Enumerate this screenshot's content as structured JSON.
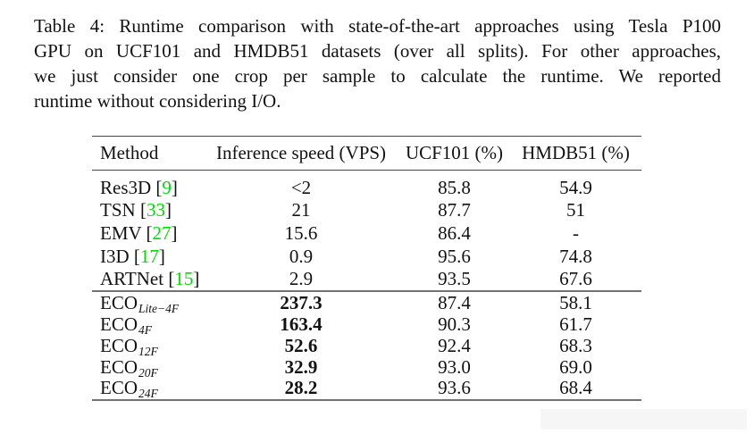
{
  "colors": {
    "citation_green": "#00dd00",
    "rule_dark": "#454545",
    "rule_gray": "#737373"
  },
  "caption": {
    "lines": [
      "Table 4: Runtime comparison with state-of-the-art approaches using Tesla P100",
      "GPU on UCF101 and HMDB51 datasets (over all splits). For other approaches,",
      "we just consider one crop per sample to calculate the runtime. We reported",
      "runtime without considering I/O."
    ]
  },
  "table": {
    "headers": [
      "Method",
      "Inference speed (VPS)",
      "UCF101 (%)",
      "HMDB51 (%)"
    ],
    "rows_sota": [
      {
        "method": "Res3D",
        "cite": "9",
        "speed": "<2",
        "ucf101": "85.8",
        "hmdb51": "54.9",
        "bold_speed": false
      },
      {
        "method": "TSN",
        "cite": "33",
        "speed": "21",
        "ucf101": "87.7",
        "hmdb51": "51",
        "bold_speed": false
      },
      {
        "method": "EMV",
        "cite": "27",
        "speed": "15.6",
        "ucf101": "86.4",
        "hmdb51": "-",
        "bold_speed": false
      },
      {
        "method": "I3D",
        "cite": "17",
        "speed": "0.9",
        "ucf101": "95.6",
        "hmdb51": "74.8",
        "bold_speed": false
      },
      {
        "method": "ARTNet",
        "cite": "15",
        "speed": "2.9",
        "ucf101": "93.5",
        "hmdb51": "67.6",
        "bold_speed": false
      }
    ],
    "rows_eco": [
      {
        "method": "ECO",
        "sub": "Lite−4F",
        "speed": "237.3",
        "ucf101": "87.4",
        "hmdb51": "58.1",
        "bold_speed": true
      },
      {
        "method": "ECO",
        "sub": "4F",
        "speed": "163.4",
        "ucf101": "90.3",
        "hmdb51": "61.7",
        "bold_speed": true
      },
      {
        "method": "ECO",
        "sub": "12F",
        "speed": "52.6",
        "ucf101": "92.4",
        "hmdb51": "68.3",
        "bold_speed": true
      },
      {
        "method": "ECO",
        "sub": "20F",
        "speed": "32.9",
        "ucf101": "93.0",
        "hmdb51": "69.0",
        "bold_speed": true
      },
      {
        "method": "ECO",
        "sub": "24F",
        "speed": "28.2",
        "ucf101": "93.6",
        "hmdb51": "68.4",
        "bold_speed": true
      }
    ]
  }
}
